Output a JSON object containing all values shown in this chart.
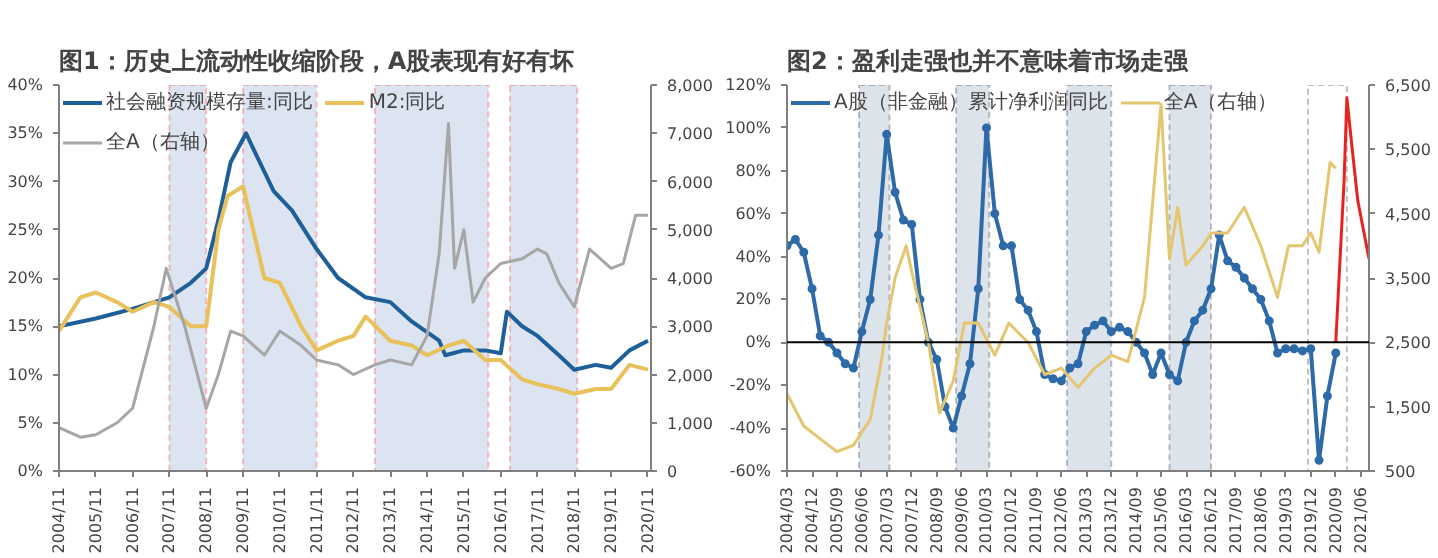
{
  "chart_data": [
    {
      "type": "line",
      "title": "图1：历史上流动性收缩阶段，A股表现有好有坏",
      "legend": "top",
      "grid": false,
      "xlim": [
        "2004-11",
        "2020-12"
      ],
      "xticks": [
        {
          "value": "2004-11",
          "label": "2004/11"
        },
        {
          "value": "2005-11",
          "label": "2005/11"
        },
        {
          "value": "2006-11",
          "label": "2006/11"
        },
        {
          "value": "2007-11",
          "label": "2007/11"
        },
        {
          "value": "2008-11",
          "label": "2008/11"
        },
        {
          "value": "2009-11",
          "label": "2009/11"
        },
        {
          "value": "2010-11",
          "label": "2010/11"
        },
        {
          "value": "2011-11",
          "label": "2011/11"
        },
        {
          "value": "2012-11",
          "label": "2012/11"
        },
        {
          "value": "2013-11",
          "label": "2013/11"
        },
        {
          "value": "2014-11",
          "label": "2014/11"
        },
        {
          "value": "2015-11",
          "label": "2015/11"
        },
        {
          "value": "2016-11",
          "label": "2016/11"
        },
        {
          "value": "2017-11",
          "label": "2017/11"
        },
        {
          "value": "2018-11",
          "label": "2018/11"
        },
        {
          "value": "2019-11",
          "label": "2019/11"
        },
        {
          "value": "2020-11",
          "label": "2020/11"
        }
      ],
      "ylim": [
        0,
        40
      ],
      "yticks": [
        {
          "value": 0,
          "label": "0%"
        },
        {
          "value": 5,
          "label": "5%"
        },
        {
          "value": 10,
          "label": "10%"
        },
        {
          "value": 15,
          "label": "15%"
        },
        {
          "value": 20,
          "label": "20%"
        },
        {
          "value": 25,
          "label": "25%"
        },
        {
          "value": 30,
          "label": "30%"
        },
        {
          "value": 35,
          "label": "35%"
        },
        {
          "value": 40,
          "label": "40%"
        }
      ],
      "y2lim": [
        0,
        8000
      ],
      "y2ticks": [
        0,
        {
          "value": 1000,
          "label": "1,000"
        },
        {
          "value": 2000,
          "label": "2,000"
        },
        {
          "value": 3000,
          "label": "3,000"
        },
        {
          "value": 4000,
          "label": "4,000"
        },
        {
          "value": 5000,
          "label": "5,000"
        },
        {
          "value": 6000,
          "label": "6,000"
        },
        {
          "value": 7000,
          "label": "7,000"
        },
        {
          "value": 8000,
          "label": "8,000"
        }
      ],
      "bands": [
        {
          "axis": "x",
          "from": "2007-11",
          "to": "2008-11",
          "color": "#dbe4f0"
        },
        {
          "axis": "x",
          "from": "2009-11",
          "to": "2011-11",
          "color": "#dbe4f0"
        },
        {
          "axis": "x",
          "from": "2013-06",
          "to": "2016-07",
          "color": "#dbe4f0"
        },
        {
          "axis": "x",
          "from": "2017-02",
          "to": "2018-12",
          "color": "#dbe4f0"
        }
      ],
      "series": [
        {
          "name": "社会融资规模存量:同比",
          "color": "#1f5f99",
          "x": [
            "2004-11",
            "2005-11",
            "2006-11",
            "2007-11",
            "2008-06",
            "2008-11",
            "2009-03",
            "2009-07",
            "2009-12",
            "2010-03",
            "2010-09",
            "2011-03",
            "2011-11",
            "2012-06",
            "2013-03",
            "2013-11",
            "2014-06",
            "2015-03",
            "2015-05",
            "2015-11",
            "2016-06",
            "2016-11",
            "2017-01",
            "2017-06",
            "2017-11",
            "2018-06",
            "2018-11",
            "2019-06",
            "2019-11",
            "2020-05",
            "2020-11"
          ],
          "values": [
            15,
            15.8,
            16.8,
            18,
            19.5,
            21,
            26,
            32,
            35,
            33,
            29,
            27,
            23,
            20,
            18,
            17.5,
            15.5,
            13.5,
            12,
            12.5,
            12.5,
            12.2,
            16.5,
            15,
            14,
            12,
            10.5,
            11,
            10.7,
            12.5,
            13.5
          ]
        },
        {
          "name": "M2:同比",
          "color": "#e8c15a",
          "x": [
            "2004-11",
            "2005-06",
            "2005-11",
            "2006-06",
            "2006-11",
            "2007-06",
            "2007-11",
            "2008-06",
            "2008-11",
            "2009-03",
            "2009-06",
            "2009-11",
            "2010-06",
            "2010-11",
            "2011-06",
            "2011-11",
            "2012-06",
            "2012-11",
            "2013-03",
            "2013-11",
            "2014-06",
            "2014-11",
            "2015-06",
            "2015-11",
            "2016-06",
            "2016-11",
            "2017-06",
            "2017-11",
            "2018-06",
            "2018-11",
            "2019-06",
            "2019-11",
            "2020-05",
            "2020-11"
          ],
          "values": [
            14.5,
            18,
            18.5,
            17.5,
            16.5,
            17.5,
            17,
            15,
            15,
            25,
            28.5,
            29.5,
            20,
            19.5,
            15,
            12.5,
            13.5,
            14,
            16,
            13.5,
            13,
            12,
            13,
            13.5,
            11.5,
            11.5,
            9.5,
            9,
            8.5,
            8,
            8.5,
            8.5,
            11,
            10.5
          ]
        },
        {
          "name": "全A（右轴）",
          "color": "#a6a6a6",
          "axis": "y2",
          "x": [
            "2004-11",
            "2005-06",
            "2005-11",
            "2006-06",
            "2006-11",
            "2007-06",
            "2007-10",
            "2008-04",
            "2008-11",
            "2009-03",
            "2009-07",
            "2009-11",
            "2010-06",
            "2010-11",
            "2011-06",
            "2011-11",
            "2012-06",
            "2012-11",
            "2013-06",
            "2013-11",
            "2014-06",
            "2014-11",
            "2015-03",
            "2015-06",
            "2015-08",
            "2015-11",
            "2016-02",
            "2016-06",
            "2016-11",
            "2017-06",
            "2017-11",
            "2018-02",
            "2018-06",
            "2018-11",
            "2019-04",
            "2019-11",
            "2020-03",
            "2020-07",
            "2020-11"
          ],
          "values": [
            900,
            700,
            750,
            1000,
            1300,
            3000,
            4200,
            3000,
            1300,
            2000,
            2900,
            2800,
            2400,
            2900,
            2600,
            2300,
            2200,
            2000,
            2200,
            2300,
            2200,
            2800,
            4500,
            7200,
            4200,
            5000,
            3500,
            4000,
            4300,
            4400,
            4600,
            4500,
            3900,
            3400,
            4600,
            4200,
            4300,
            5300,
            5300
          ]
        }
      ]
    },
    {
      "type": "line",
      "title": "图2：盈利走强也并不意味着市场走强",
      "legend": "top",
      "grid": false,
      "xlim": [
        "2004-03",
        "2021-09"
      ],
      "xticks": [
        {
          "value": "2004-03",
          "label": "2004/03"
        },
        {
          "value": "2004-12",
          "label": "2004/12"
        },
        {
          "value": "2005-09",
          "label": "2005/09"
        },
        {
          "value": "2006-06",
          "label": "2006/06"
        },
        {
          "value": "2007-03",
          "label": "2007/03"
        },
        {
          "value": "2007-12",
          "label": "2007/12"
        },
        {
          "value": "2008-09",
          "label": "2008/09"
        },
        {
          "value": "2009-06",
          "label": "2009/06"
        },
        {
          "value": "2010-03",
          "label": "2010/03"
        },
        {
          "value": "2010-12",
          "label": "2010/12"
        },
        {
          "value": "2011-09",
          "label": "2011/09"
        },
        {
          "value": "2012-06",
          "label": "2012/06"
        },
        {
          "value": "2013-03",
          "label": "2013/03"
        },
        {
          "value": "2013-12",
          "label": "2013/12"
        },
        {
          "value": "2014-09",
          "label": "2014/09"
        },
        {
          "value": "2015-06",
          "label": "2015/06"
        },
        {
          "value": "2016-03",
          "label": "2016/03"
        },
        {
          "value": "2016-12",
          "label": "2016/12"
        },
        {
          "value": "2017-09",
          "label": "2017/09"
        },
        {
          "value": "2018-06",
          "label": "2018/06"
        },
        {
          "value": "2019-03",
          "label": "2019/03"
        },
        {
          "value": "2019-12",
          "label": "2019/12"
        },
        {
          "value": "2020-09",
          "label": "2020/09"
        },
        {
          "value": "2021-06",
          "label": "2021/06"
        }
      ],
      "ylim": [
        -60,
        120
      ],
      "yticks": [
        {
          "value": -60,
          "label": "-60%"
        },
        {
          "value": -40,
          "label": "-40%"
        },
        {
          "value": -20,
          "label": "-20%"
        },
        {
          "value": 0,
          "label": "0%"
        },
        {
          "value": 20,
          "label": "20%"
        },
        {
          "value": 40,
          "label": "40%"
        },
        {
          "value": 60,
          "label": "60%"
        },
        {
          "value": 80,
          "label": "80%"
        },
        {
          "value": 100,
          "label": "100%"
        },
        {
          "value": 120,
          "label": "120%"
        }
      ],
      "y2lim": [
        500,
        6500
      ],
      "y2ticks": [
        500,
        {
          "value": 1500,
          "label": "1,500"
        },
        {
          "value": 2500,
          "label": "2,500"
        },
        {
          "value": 3500,
          "label": "3,500"
        },
        {
          "value": 4500,
          "label": "4,500"
        },
        {
          "value": 5500,
          "label": "5,500"
        },
        {
          "value": 6500,
          "label": "6,500"
        }
      ],
      "ref_lines": [
        {
          "axis": "y",
          "value": 0,
          "color": "#000000"
        }
      ],
      "bands": [
        {
          "axis": "x",
          "from": "2006-05",
          "to": "2007-04",
          "color": "#dde3ea"
        },
        {
          "axis": "x",
          "from": "2009-04",
          "to": "2010-04",
          "color": "#dde3ea"
        },
        {
          "axis": "x",
          "from": "2012-08",
          "to": "2013-12",
          "color": "#dde3ea"
        },
        {
          "axis": "x",
          "from": "2015-09",
          "to": "2016-12",
          "color": "#dde3ea"
        },
        {
          "axis": "x",
          "from": "2019-11",
          "to": "2021-01",
          "color": "#ffffff"
        }
      ],
      "series": [
        {
          "name": "A股（非金融）累计净利润同比",
          "color": "#2e6aa8",
          "marker": "circle",
          "x": [
            "2004-03",
            "2004-06",
            "2004-09",
            "2004-12",
            "2005-03",
            "2005-06",
            "2005-09",
            "2005-12",
            "2006-03",
            "2006-06",
            "2006-09",
            "2006-12",
            "2007-03",
            "2007-06",
            "2007-09",
            "2007-12",
            "2008-03",
            "2008-06",
            "2008-09",
            "2008-12",
            "2009-03",
            "2009-06",
            "2009-09",
            "2009-12",
            "2010-03",
            "2010-06",
            "2010-09",
            "2010-12",
            "2011-03",
            "2011-06",
            "2011-09",
            "2011-12",
            "2012-03",
            "2012-06",
            "2012-09",
            "2012-12",
            "2013-03",
            "2013-06",
            "2013-09",
            "2013-12",
            "2014-03",
            "2014-06",
            "2014-09",
            "2014-12",
            "2015-03",
            "2015-06",
            "2015-09",
            "2015-12",
            "2016-03",
            "2016-06",
            "2016-09",
            "2016-12",
            "2017-03",
            "2017-06",
            "2017-09",
            "2017-12",
            "2018-03",
            "2018-06",
            "2018-09",
            "2018-12",
            "2019-03",
            "2019-06",
            "2019-09",
            "2019-12",
            "2020-03",
            "2020-06",
            "2020-09"
          ],
          "values": [
            45,
            48,
            42,
            25,
            3,
            0,
            -5,
            -10,
            -12,
            5,
            20,
            50,
            97,
            70,
            57,
            55,
            20,
            0,
            -8,
            -30,
            -40,
            -25,
            -10,
            25,
            100,
            60,
            45,
            45,
            20,
            15,
            5,
            -15,
            -17,
            -18,
            -12,
            -10,
            5,
            8,
            10,
            5,
            7,
            5,
            0,
            -5,
            -15,
            -5,
            -15,
            -18,
            0,
            10,
            15,
            25,
            50,
            38,
            35,
            30,
            25,
            20,
            10,
            -5,
            -3,
            -3,
            -4,
            -3,
            -55,
            -25,
            -5
          ]
        },
        {
          "name": "全A（右轴）",
          "color": "#e3c66f",
          "axis": "y2",
          "x": [
            "2004-03",
            "2004-09",
            "2005-03",
            "2005-09",
            "2006-03",
            "2006-06",
            "2006-09",
            "2007-01",
            "2007-03",
            "2007-06",
            "2007-10",
            "2007-12",
            "2008-06",
            "2008-10",
            "2009-03",
            "2009-07",
            "2009-12",
            "2010-06",
            "2010-11",
            "2011-06",
            "2011-12",
            "2012-06",
            "2012-12",
            "2013-06",
            "2013-12",
            "2014-06",
            "2014-12",
            "2015-06",
            "2015-09",
            "2015-12",
            "2016-03",
            "2016-09",
            "2016-12",
            "2017-06",
            "2017-12",
            "2018-06",
            "2018-12",
            "2019-04",
            "2019-09",
            "2019-12",
            "2020-03",
            "2020-07",
            "2020-09"
          ],
          "values": [
            1700,
            1200,
            1000,
            800,
            900,
            1100,
            1300,
            2200,
            2800,
            3500,
            4000,
            3600,
            2500,
            1400,
            1900,
            2800,
            2800,
            2300,
            2800,
            2500,
            2000,
            2100,
            1800,
            2100,
            2300,
            2200,
            3200,
            6200,
            3800,
            4600,
            3700,
            4000,
            4200,
            4200,
            4600,
            4000,
            3200,
            4000,
            4000,
            4200,
            3900,
            5300,
            5200
          ]
        },
        {
          "color": "#e8231f",
          "axis": "y2",
          "x": [
            "2020-09",
            "2020-12",
            "2021-01",
            "2021-03",
            "2021-05",
            "2021-09"
          ],
          "values": [
            2500,
            5000,
            6300,
            5500,
            4700,
            3800
          ]
        }
      ]
    }
  ]
}
